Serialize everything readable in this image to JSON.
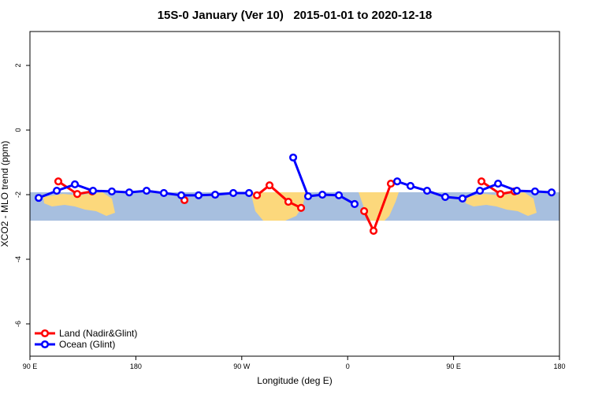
{
  "chart_data": {
    "type": "line",
    "title": "15S-0 January (Ver 10)   2015-01-01 to 2020-12-18",
    "x_label": "Longitude (deg E)",
    "y_label": "XCO2 - MLO trend (ppm)",
    "xlim": [
      90,
      540
    ],
    "xticks": [
      {
        "value": 90,
        "label": "90 E"
      },
      {
        "value": 180,
        "label": "180"
      },
      {
        "value": 270,
        "label": "90 W"
      },
      {
        "value": 360,
        "label": "0"
      },
      {
        "value": 450,
        "label": "90 E"
      },
      {
        "value": 540,
        "label": "180"
      }
    ],
    "ylim": [
      -7,
      3.05
    ],
    "yticks": [
      -6,
      -4,
      -2,
      0,
      2
    ],
    "legend": "bottom-left",
    "series": [
      {
        "name": "Land (Nadir&Glint)",
        "color": "#ff0000",
        "x": [
          114.1,
          130.2,
          142.9,
          null,
          221.3,
          null,
          282.9,
          293.6,
          309.6,
          320.4,
          null,
          374.0,
          382.0,
          396.7,
          null,
          473.7,
          489.8,
          501.8
        ],
        "values": [
          -1.59,
          -1.98,
          -1.9,
          null,
          -2.17,
          null,
          -2.02,
          -1.71,
          -2.22,
          -2.41,
          null,
          -2.51,
          -3.12,
          -1.66,
          null,
          -1.59,
          -1.98,
          -1.9
        ]
      },
      {
        "name": "Ocean (Glint)",
        "color": "#0000ff",
        "x": [
          97.4,
          112.8,
          128.2,
          143.6,
          159.6,
          174.4,
          189.1,
          203.8,
          218.6,
          233.3,
          247.4,
          262.8,
          276.2,
          null,
          313.7,
          326.4,
          338.5,
          352.5,
          365.9,
          null,
          402.1,
          413.4,
          427.5,
          442.9,
          457.6,
          472.4,
          487.8,
          503.8,
          519.2,
          533.3
        ],
        "values": [
          -2.1,
          -1.88,
          -1.68,
          -1.88,
          -1.9,
          -1.93,
          -1.88,
          -1.95,
          -2.02,
          -2.02,
          -2.0,
          -1.95,
          -1.95,
          null,
          -0.85,
          -2.05,
          -2.0,
          -2.02,
          -2.29,
          null,
          -1.59,
          -1.73,
          -1.88,
          -2.07,
          -2.12,
          -1.88,
          -1.66,
          -1.88,
          -1.9,
          -1.93
        ]
      }
    ]
  }
}
